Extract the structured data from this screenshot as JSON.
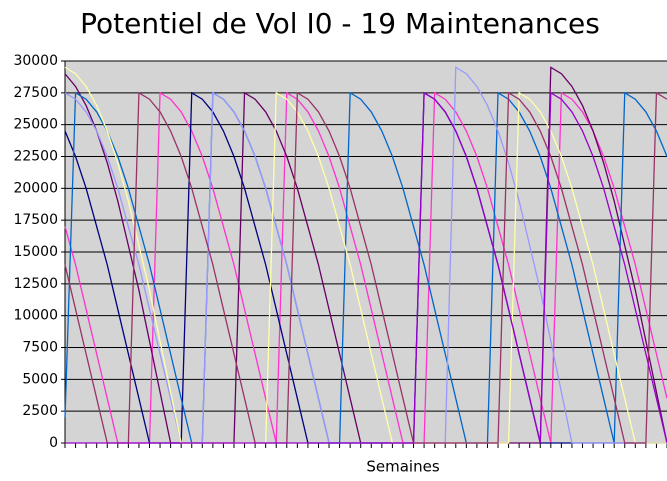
{
  "chart_data": {
    "type": "line",
    "title": "Potentiel de Vol I0 - 19 Maintenances",
    "x_label": "Semaines",
    "categories": [
      null,
      null,
      null,
      null,
      null,
      null,
      null,
      null,
      null,
      null,
      null,
      null,
      null,
      null,
      null,
      null,
      null,
      null,
      null,
      null,
      null,
      null,
      null,
      null,
      null,
      null,
      null,
      null,
      null,
      null,
      null,
      null,
      null,
      null,
      null,
      null,
      null,
      null,
      null,
      null,
      null,
      null,
      null,
      null,
      null,
      null,
      null,
      null,
      null,
      null,
      null,
      null,
      null,
      null,
      null,
      null,
      null,
      null
    ],
    "ylim": [
      0,
      30000
    ],
    "yticks": [
      0,
      2500,
      5000,
      7500,
      10000,
      12500,
      15000,
      17500,
      20000,
      22500,
      25000,
      27500,
      30000
    ],
    "grid": true,
    "series": [
      {
        "color": "#ff33cc",
        "values": [
          17000,
          14000,
          10500,
          7000,
          3500,
          0,
          0,
          0,
          0,
          27500,
          27000,
          26000,
          24500,
          22500,
          20000,
          17000,
          14000,
          10500,
          7000,
          3500,
          0,
          27500,
          27000,
          26000,
          24500,
          22500,
          20000,
          17000,
          14000,
          10500,
          7000,
          3500,
          0,
          0,
          0,
          27500,
          27000,
          26000,
          24500,
          22500,
          20000,
          17000,
          14000,
          10500,
          7000,
          3500,
          0,
          27500,
          27000,
          26000,
          24500,
          22500,
          20000,
          17000,
          14000,
          10500,
          7000,
          3500
        ]
      },
      {
        "color": "#660066",
        "values": [
          29000,
          28000,
          26500,
          24500,
          22000,
          19000,
          15500,
          12000,
          8000,
          4000,
          0,
          0,
          0,
          0,
          0,
          0,
          0,
          27500,
          27000,
          26000,
          24500,
          22500,
          20000,
          17000,
          14000,
          10500,
          7000,
          3500,
          0,
          0,
          0,
          0,
          0,
          0,
          0,
          0,
          0,
          0,
          0,
          0,
          0,
          0,
          0,
          0,
          0,
          0,
          29500,
          29000,
          28000,
          26500,
          24500,
          22000,
          19000,
          15500,
          12000,
          8000,
          4000,
          0
        ]
      },
      {
        "color": "#000080",
        "values": [
          24500,
          22500,
          20000,
          17000,
          14000,
          10500,
          7000,
          3500,
          0,
          0,
          0,
          0,
          27500,
          27000,
          26000,
          24500,
          22500,
          20000,
          17000,
          14000,
          10500,
          7000,
          3500,
          0,
          0,
          0,
          0,
          0,
          0,
          0,
          0,
          0,
          0,
          0,
          27500,
          27000,
          26000,
          24500,
          22500,
          20000,
          17000,
          14000,
          10500,
          7000,
          3500,
          0,
          0,
          0,
          0,
          0,
          0,
          0,
          0,
          0,
          0,
          0,
          0,
          0
        ]
      },
      {
        "color": "#0066cc",
        "values": [
          2000,
          27500,
          27000,
          26000,
          24500,
          22500,
          20000,
          17000,
          14000,
          10500,
          7000,
          3500,
          0,
          0,
          27500,
          27000,
          26000,
          24500,
          22500,
          20000,
          17000,
          14000,
          10500,
          7000,
          3500,
          0,
          0,
          27500,
          27000,
          26000,
          24500,
          22500,
          20000,
          17000,
          14000,
          10500,
          7000,
          3500,
          0,
          0,
          0,
          27500,
          27000,
          26000,
          24500,
          22500,
          20000,
          17000,
          14000,
          10500,
          7000,
          3500,
          0,
          27500,
          27000,
          26000,
          24500,
          22500
        ]
      },
      {
        "color": "#9999ff",
        "values": [
          27500,
          27000,
          26000,
          24500,
          22500,
          20000,
          17000,
          14000,
          10500,
          7000,
          3500,
          0,
          0,
          0,
          27500,
          27000,
          26000,
          24500,
          22500,
          20000,
          17000,
          14000,
          10500,
          7000,
          3500,
          0,
          0,
          0,
          0,
          0,
          0,
          0,
          0,
          0,
          0,
          0,
          0,
          29500,
          29000,
          28000,
          26500,
          24500,
          22000,
          19000,
          15500,
          12000,
          8000,
          4000,
          0,
          0,
          0,
          0,
          0,
          0,
          0,
          0,
          0,
          0
        ]
      },
      {
        "color": "#ffffaa",
        "values": [
          29500,
          29000,
          28000,
          26500,
          24500,
          22000,
          19000,
          15500,
          12000,
          8000,
          4000,
          0,
          0,
          0,
          0,
          0,
          0,
          0,
          0,
          0,
          27500,
          27000,
          26000,
          24500,
          22500,
          20000,
          17000,
          14000,
          10500,
          7000,
          3500,
          0,
          0,
          0,
          0,
          0,
          0,
          0,
          0,
          0,
          0,
          0,
          0,
          27500,
          27000,
          26000,
          24500,
          22500,
          20000,
          17000,
          14000,
          10500,
          7000,
          3500,
          0,
          0,
          0,
          0
        ]
      },
      {
        "color": "#993366",
        "values": [
          14000,
          10500,
          7000,
          3500,
          0,
          0,
          0,
          27500,
          27000,
          26000,
          24500,
          22500,
          20000,
          17000,
          14000,
          10500,
          7000,
          3500,
          0,
          0,
          0,
          0,
          27500,
          27000,
          26000,
          24500,
          22500,
          20000,
          17000,
          14000,
          10500,
          7000,
          3500,
          0,
          0,
          0,
          0,
          0,
          0,
          0,
          0,
          0,
          27500,
          27000,
          26000,
          24500,
          22500,
          20000,
          17000,
          14000,
          10500,
          7000,
          3500,
          0,
          0,
          0,
          27500,
          27000
        ]
      },
      {
        "color": "#9900cc",
        "values": [
          0,
          0,
          0,
          0,
          0,
          0,
          0,
          0,
          0,
          0,
          0,
          0,
          0,
          0,
          0,
          0,
          0,
          0,
          0,
          0,
          0,
          0,
          0,
          0,
          0,
          0,
          0,
          0,
          0,
          0,
          0,
          0,
          0,
          0,
          27500,
          27000,
          26000,
          24500,
          22500,
          20000,
          17000,
          14000,
          10500,
          7000,
          3500,
          0,
          27500,
          27000,
          26000,
          24500,
          22500,
          20000,
          17000,
          14000,
          10500,
          7000,
          3500,
          0
        ]
      }
    ]
  }
}
